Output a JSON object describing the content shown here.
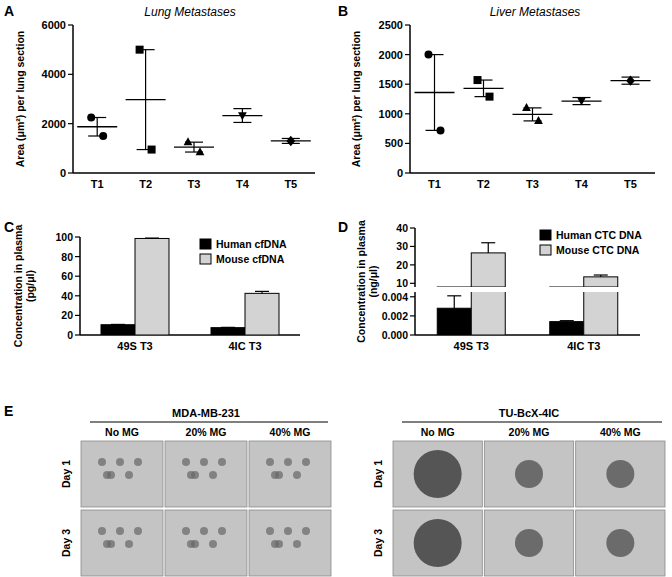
{
  "chart_data": [
    {
      "label": "A",
      "type": "scatter",
      "title": "Lung Metastases",
      "y_label": "Area (μm²) per lung section",
      "categories": [
        "T1",
        "T2",
        "T3",
        "T4",
        "T5"
      ],
      "ylim": [
        0,
        6000
      ],
      "yticks": [
        0,
        2000,
        4000,
        6000
      ],
      "color": "#000000",
      "series": [
        {
          "marker": "circle",
          "values": [
            1875,
            null,
            null,
            null,
            null
          ],
          "errors": [
            375,
            null,
            null,
            null,
            null
          ],
          "points": [
            [
              2250,
              1500
            ],
            null,
            null,
            null,
            null
          ]
        },
        {
          "marker": "square",
          "values": [
            null,
            2975,
            null,
            null,
            null
          ],
          "errors": [
            null,
            2025,
            null,
            null,
            null
          ],
          "points": [
            null,
            [
              5000,
              950
            ],
            null,
            null,
            null
          ]
        },
        {
          "marker": "triangle",
          "values": [
            null,
            null,
            1050,
            null,
            null
          ],
          "errors": [
            null,
            null,
            200,
            null,
            null
          ],
          "points": [
            null,
            null,
            [
              1250,
              850
            ],
            null,
            null
          ]
        },
        {
          "marker": "triangle-down",
          "values": [
            null,
            null,
            null,
            2330,
            null
          ],
          "errors": [
            null,
            null,
            null,
            280,
            null
          ],
          "points": [
            null,
            null,
            null,
            [
              2330
            ],
            null
          ]
        },
        {
          "marker": "diamond",
          "values": [
            null,
            null,
            null,
            null,
            1300
          ],
          "errors": [
            null,
            null,
            null,
            null,
            100
          ],
          "points": [
            null,
            null,
            null,
            null,
            [
              1300
            ]
          ]
        }
      ]
    },
    {
      "label": "B",
      "type": "scatter",
      "title": "Liver Metastases",
      "y_label": "Area (μm²) per lung section",
      "categories": [
        "T1",
        "T2",
        "T3",
        "T4",
        "T5"
      ],
      "ylim": [
        0,
        2500
      ],
      "yticks": [
        0,
        500,
        1000,
        1500,
        2000,
        2500
      ],
      "color": "#000000",
      "series": [
        {
          "marker": "circle",
          "values": [
            1360,
            null,
            null,
            null,
            null
          ],
          "errors": [
            640,
            null,
            null,
            null,
            null
          ],
          "points": [
            [
              2000,
              720
            ],
            null,
            null,
            null,
            null
          ]
        },
        {
          "marker": "square",
          "values": [
            null,
            1430,
            null,
            null,
            null
          ],
          "errors": [
            null,
            140,
            null,
            null,
            null
          ],
          "points": [
            null,
            [
              1570,
              1290
            ],
            null,
            null,
            null
          ]
        },
        {
          "marker": "triangle",
          "values": [
            null,
            null,
            990,
            null,
            null
          ],
          "errors": [
            null,
            null,
            110,
            null,
            null
          ],
          "points": [
            null,
            null,
            [
              1100,
              880
            ],
            null,
            null
          ]
        },
        {
          "marker": "triangle-down",
          "values": [
            null,
            null,
            null,
            1215,
            null
          ],
          "errors": [
            null,
            null,
            null,
            60,
            null
          ],
          "points": [
            null,
            null,
            null,
            [
              1220
            ],
            null
          ]
        },
        {
          "marker": "diamond",
          "values": [
            null,
            null,
            null,
            null,
            1560
          ],
          "errors": [
            null,
            null,
            null,
            null,
            60
          ],
          "points": [
            null,
            null,
            null,
            null,
            [
              1560
            ]
          ]
        }
      ]
    },
    {
      "label": "C",
      "type": "bar",
      "y_label": "Concentration in plasma (pg/μl)",
      "categories": [
        "49S T3",
        "4IC T3"
      ],
      "ylim": [
        0,
        100
      ],
      "yticks": [
        0,
        20,
        40,
        60,
        80,
        100
      ],
      "legend": "top-right",
      "series": [
        {
          "name": "Human cfDNA",
          "color": "#000000",
          "values": [
            10.5,
            7.5
          ],
          "errors": [
            0.3,
            0.3
          ]
        },
        {
          "name": "Mouse cfDNA",
          "color": "#d3d3d3",
          "values": [
            98.5,
            42.5
          ],
          "errors": [
            0.4,
            2.0
          ]
        }
      ]
    },
    {
      "label": "D",
      "type": "bar",
      "y_label": "Concentration in plasma (ng/μl)",
      "categories": [
        "49S T3",
        "4IC T3"
      ],
      "legend": "top-right",
      "y_segments": [
        {
          "ylim": [
            0,
            0.0045
          ],
          "yticks": [
            {
              "value": 0,
              "label": "0.000"
            },
            {
              "value": 0.002,
              "label": "0.002"
            },
            {
              "value": 0.004,
              "label": "0.004"
            }
          ]
        },
        {
          "ylim": [
            8,
            40
          ],
          "yticks": [
            10,
            20,
            30,
            40
          ]
        }
      ],
      "series": [
        {
          "name": "Human CTC DNA",
          "color": "#000000",
          "values": [
            0.0028,
            0.0014
          ],
          "errors": [
            0.0013,
            0.0001
          ]
        },
        {
          "name": "Mouse CTC DNA",
          "color": "#d3d3d3",
          "values": [
            26.5,
            13.5
          ],
          "errors": [
            5.5,
            1.0
          ]
        }
      ]
    }
  ],
  "image_panel": {
    "label": "E",
    "groups": [
      {
        "title": "MDA-MB-231",
        "columns": [
          "No MG",
          "20% MG",
          "40% MG"
        ],
        "rows": [
          "Day 1",
          "Day 3"
        ]
      },
      {
        "title": "TU-BcX-4IC",
        "columns": [
          "No MG",
          "20% MG",
          "40% MG"
        ],
        "rows": [
          "Day 1",
          "Day 3"
        ]
      }
    ]
  }
}
